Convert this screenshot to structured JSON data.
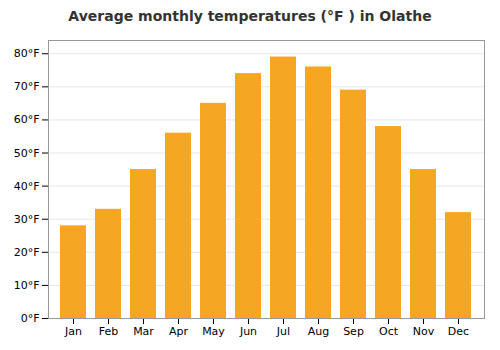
{
  "chart_data": {
    "type": "bar",
    "title": "Average monthly temperatures (°F ) in Olathe",
    "categories": [
      "Jan",
      "Feb",
      "Mar",
      "Apr",
      "May",
      "Jun",
      "Jul",
      "Aug",
      "Sep",
      "Oct",
      "Nov",
      "Dec"
    ],
    "values": [
      28,
      33,
      45,
      56,
      65,
      74,
      79,
      76,
      69,
      58,
      45,
      32
    ],
    "color": "#F5A623",
    "ylim": [
      0,
      84
    ],
    "yticks": [
      {
        "value": 0,
        "label": "0°F"
      },
      {
        "value": 10,
        "label": "10°F"
      },
      {
        "value": 20,
        "label": "20°F"
      },
      {
        "value": 30,
        "label": "30°F"
      },
      {
        "value": 40,
        "label": "40°F"
      },
      {
        "value": 50,
        "label": "50°F"
      },
      {
        "value": 60,
        "label": "60°F"
      },
      {
        "value": 70,
        "label": "70°F"
      },
      {
        "value": 80,
        "label": "80°F"
      }
    ],
    "grid": true
  }
}
